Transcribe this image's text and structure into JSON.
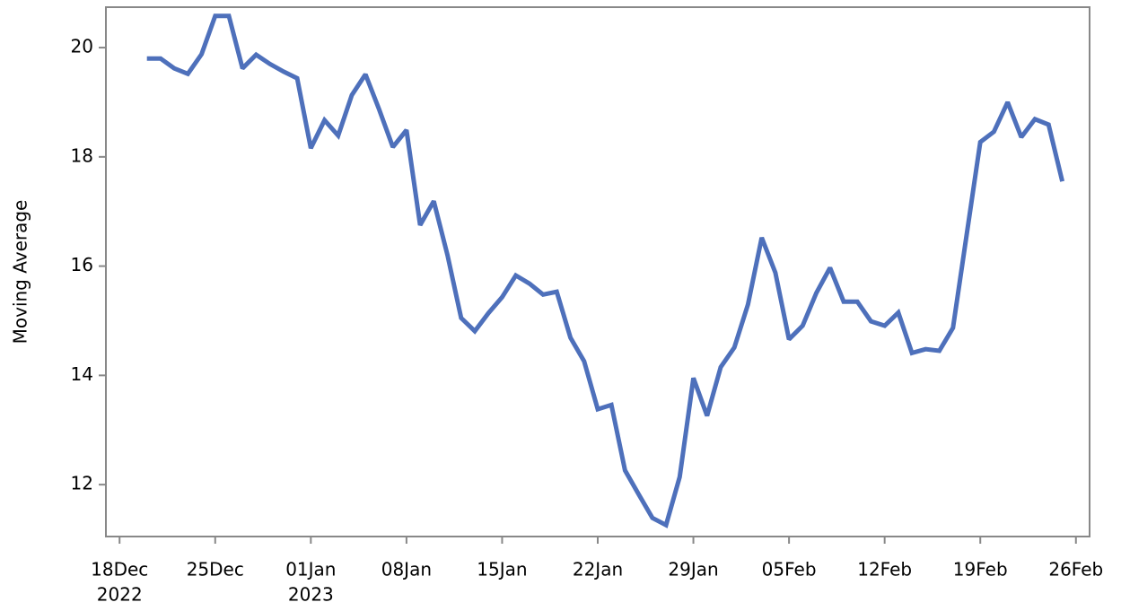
{
  "chart_data": {
    "type": "line",
    "y_label": "Moving Average",
    "x": [
      "2022-12-20",
      "2022-12-21",
      "2022-12-22",
      "2022-12-23",
      "2022-12-24",
      "2022-12-25",
      "2022-12-26",
      "2022-12-27",
      "2022-12-28",
      "2022-12-29",
      "2022-12-30",
      "2022-12-31",
      "2023-01-01",
      "2023-01-02",
      "2023-01-03",
      "2023-01-04",
      "2023-01-05",
      "2023-01-06",
      "2023-01-07",
      "2023-01-08",
      "2023-01-09",
      "2023-01-10",
      "2023-01-11",
      "2023-01-12",
      "2023-01-13",
      "2023-01-14",
      "2023-01-15",
      "2023-01-16",
      "2023-01-17",
      "2023-01-18",
      "2023-01-19",
      "2023-01-20",
      "2023-01-21",
      "2023-01-22",
      "2023-01-23",
      "2023-01-24",
      "2023-01-25",
      "2023-01-26",
      "2023-01-27",
      "2023-01-28",
      "2023-01-29",
      "2023-01-30",
      "2023-01-31",
      "2023-02-01",
      "2023-02-02",
      "2023-02-03",
      "2023-02-04",
      "2023-02-05",
      "2023-02-06",
      "2023-02-07",
      "2023-02-08",
      "2023-02-09",
      "2023-02-10",
      "2023-02-11",
      "2023-02-12",
      "2023-02-13",
      "2023-02-14",
      "2023-02-15",
      "2023-02-16",
      "2023-02-17",
      "2023-02-18",
      "2023-02-19",
      "2023-02-20",
      "2023-02-21",
      "2023-02-22",
      "2023-02-23",
      "2023-02-24",
      "2023-02-25"
    ],
    "series": [
      {
        "color": "#4e70bb",
        "values": [
          19.8,
          19.8,
          19.62,
          19.52,
          19.88,
          20.58,
          20.58,
          19.62,
          19.87,
          19.7,
          19.56,
          19.44,
          18.16,
          18.67,
          18.39,
          19.13,
          19.51,
          18.87,
          18.18,
          18.49,
          16.75,
          17.19,
          16.2,
          15.05,
          14.81,
          15.14,
          15.43,
          15.83,
          15.68,
          15.48,
          15.53,
          14.69,
          14.26,
          13.38,
          13.46,
          12.26,
          11.82,
          11.39,
          11.26,
          12.14,
          13.95,
          13.26,
          14.15,
          14.51,
          15.3,
          16.52,
          15.88,
          14.66,
          14.91,
          15.51,
          15.97,
          15.35,
          15.35,
          14.99,
          14.91,
          15.15,
          14.41,
          14.48,
          14.45,
          14.87,
          16.57,
          18.27,
          18.46,
          19.0,
          18.36,
          18.69,
          18.59,
          17.55
        ]
      }
    ],
    "xlim": [
      "2022-12-17",
      "2023-02-27"
    ],
    "xticks": [
      {
        "value": "2022-12-18",
        "label": "18Dec",
        "year": "2022"
      },
      {
        "value": "2022-12-25",
        "label": "25Dec"
      },
      {
        "value": "2023-01-01",
        "label": "01Jan",
        "year": "2023"
      },
      {
        "value": "2023-01-08",
        "label": "08Jan"
      },
      {
        "value": "2023-01-15",
        "label": "15Jan"
      },
      {
        "value": "2023-01-22",
        "label": "22Jan"
      },
      {
        "value": "2023-01-29",
        "label": "29Jan"
      },
      {
        "value": "2023-02-05",
        "label": "05Feb"
      },
      {
        "value": "2023-02-12",
        "label": "12Feb"
      },
      {
        "value": "2023-02-19",
        "label": "19Feb"
      },
      {
        "value": "2023-02-26",
        "label": "26Feb"
      }
    ],
    "ylim": [
      11.05,
      20.74
    ],
    "yticks": [
      12,
      14,
      16,
      18,
      20
    ]
  }
}
